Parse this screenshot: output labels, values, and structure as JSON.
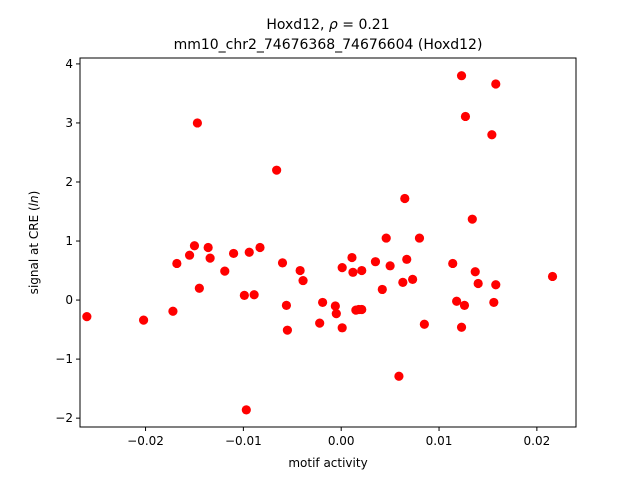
{
  "chart_data": {
    "type": "scatter",
    "title_parts": {
      "gene": "Hoxd12",
      "rho_symbol": "ρ",
      "rho_value": "0.21"
    },
    "subtitle": "mm10_chr2_74676368_74676604 (Hoxd12)",
    "xlabel": "motif activity",
    "ylabel_parts": {
      "prefix": "signal at CRE (",
      "italic": "ln",
      "suffix": ")"
    },
    "xlim": [
      -0.0267,
      0.024
    ],
    "ylim": [
      -2.15,
      4.1
    ],
    "x_ticks": [
      -0.02,
      -0.01,
      0.0,
      0.01,
      0.02
    ],
    "x_tick_labels": [
      "−0.02",
      "−0.01",
      "0.00",
      "0.01",
      "0.02"
    ],
    "y_ticks": [
      -2,
      -1,
      0,
      1,
      2,
      3,
      4
    ],
    "y_tick_labels": [
      "−2",
      "−1",
      "0",
      "1",
      "2",
      "3",
      "4"
    ],
    "marker_color": "#ff0000",
    "series": [
      {
        "points": [
          [
            -0.026,
            -0.28
          ],
          [
            -0.0202,
            -0.34
          ],
          [
            -0.0172,
            -0.19
          ],
          [
            -0.0168,
            0.62
          ],
          [
            -0.0155,
            0.76
          ],
          [
            -0.015,
            0.92
          ],
          [
            -0.0145,
            0.2
          ],
          [
            -0.0147,
            3.0
          ],
          [
            -0.0136,
            0.89
          ],
          [
            -0.0134,
            0.71
          ],
          [
            -0.0119,
            0.49
          ],
          [
            -0.011,
            0.79
          ],
          [
            -0.0099,
            0.08
          ],
          [
            -0.0097,
            -1.86
          ],
          [
            -0.0094,
            0.81
          ],
          [
            -0.0089,
            0.09
          ],
          [
            -0.0083,
            0.89
          ],
          [
            -0.0066,
            2.2
          ],
          [
            -0.006,
            0.63
          ],
          [
            -0.0056,
            -0.09
          ],
          [
            -0.0055,
            -0.51
          ],
          [
            -0.0042,
            0.5
          ],
          [
            -0.0039,
            0.33
          ],
          [
            -0.0022,
            -0.39
          ],
          [
            -0.0019,
            -0.04
          ],
          [
            -0.0006,
            -0.1
          ],
          [
            -0.0005,
            -0.23
          ],
          [
            0.0001,
            0.55
          ],
          [
            0.0001,
            -0.47
          ],
          [
            0.0011,
            0.72
          ],
          [
            0.0012,
            0.47
          ],
          [
            0.0015,
            -0.17
          ],
          [
            0.0018,
            -0.16
          ],
          [
            0.0021,
            0.5
          ],
          [
            0.0021,
            -0.16
          ],
          [
            0.0035,
            0.65
          ],
          [
            0.0042,
            0.18
          ],
          [
            0.0046,
            1.05
          ],
          [
            0.005,
            0.58
          ],
          [
            0.0059,
            -1.29
          ],
          [
            0.0063,
            0.3
          ],
          [
            0.0065,
            1.72
          ],
          [
            0.0067,
            0.69
          ],
          [
            0.0073,
            0.35
          ],
          [
            0.008,
            1.05
          ],
          [
            0.0085,
            -0.41
          ],
          [
            0.0114,
            0.62
          ],
          [
            0.0118,
            -0.02
          ],
          [
            0.0123,
            3.8
          ],
          [
            0.0123,
            -0.46
          ],
          [
            0.0126,
            -0.09
          ],
          [
            0.0127,
            3.11
          ],
          [
            0.0134,
            1.37
          ],
          [
            0.0137,
            0.48
          ],
          [
            0.014,
            0.28
          ],
          [
            0.0154,
            2.8
          ],
          [
            0.0156,
            -0.04
          ],
          [
            0.0158,
            3.66
          ],
          [
            0.0158,
            0.26
          ],
          [
            0.0216,
            0.4
          ]
        ]
      }
    ]
  }
}
